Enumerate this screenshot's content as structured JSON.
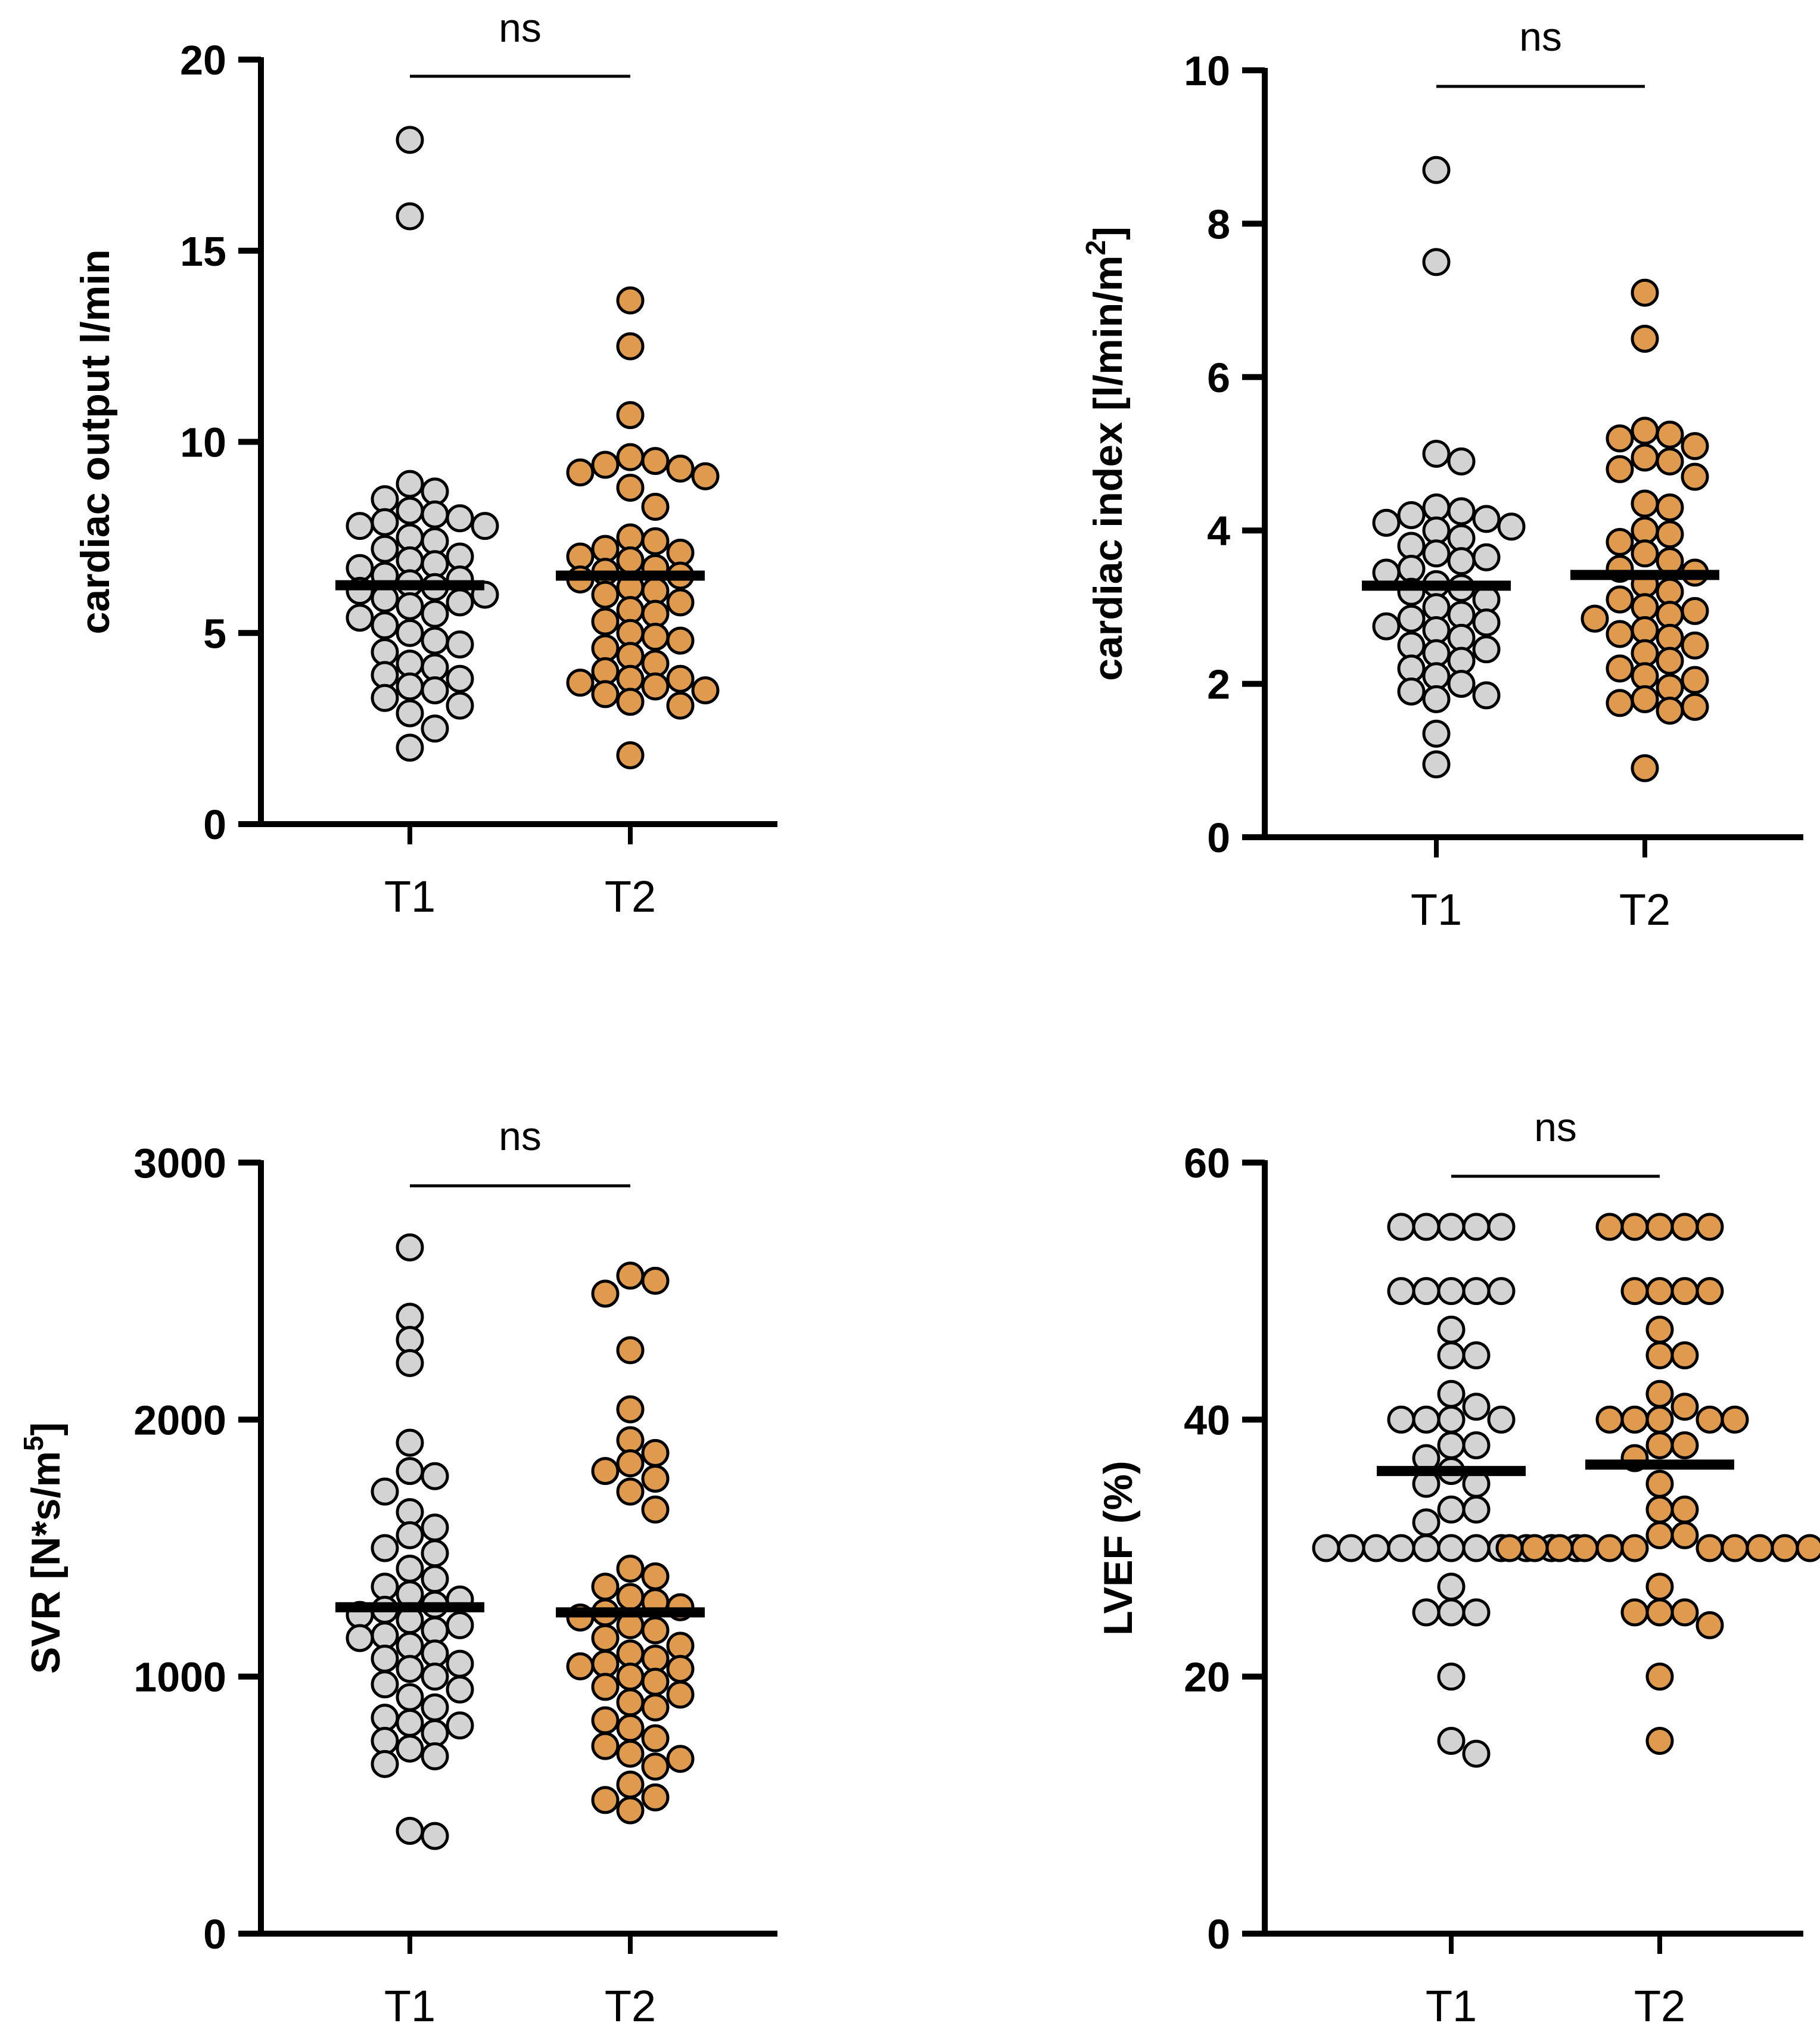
{
  "colors": {
    "T1_fill": "#d3d3d3",
    "T2_fill": "#e09a4e",
    "marker_edge": "#000000",
    "axis": "#000000",
    "mean_bar": "#000000"
  },
  "chart_data": [
    {
      "type": "scatter",
      "id": "cardiac-output",
      "ylabel": "cardiac output l/min",
      "ylabel_sup": "",
      "ylim": [
        0,
        20
      ],
      "yticks": [
        "0",
        "5",
        "10",
        "15",
        "20"
      ],
      "categories": [
        "T1",
        "T2"
      ],
      "significance": "ns",
      "series": [
        {
          "name": "T1",
          "mean": 6.25,
          "values": [
            17.9,
            15.9,
            8.9,
            8.7,
            8.5,
            8.2,
            8.1,
            8.0,
            7.9,
            7.8,
            7.8,
            7.5,
            7.4,
            7.2,
            7.0,
            6.9,
            6.8,
            6.7,
            6.5,
            6.4,
            6.3,
            6.2,
            6.1,
            6.0,
            5.9,
            5.8,
            5.7,
            5.5,
            5.4,
            5.2,
            5.0,
            4.8,
            4.7,
            4.5,
            4.2,
            4.1,
            3.9,
            3.8,
            3.6,
            3.5,
            3.3,
            3.1,
            2.9,
            2.5,
            2.0
          ]
        },
        {
          "name": "T2",
          "mean": 6.5,
          "values": [
            13.7,
            12.5,
            10.7,
            9.6,
            9.5,
            9.4,
            9.3,
            9.2,
            9.1,
            8.8,
            8.3,
            7.5,
            7.4,
            7.2,
            7.1,
            7.0,
            6.9,
            6.7,
            6.6,
            6.5,
            6.4,
            6.2,
            6.1,
            6.0,
            5.8,
            5.6,
            5.5,
            5.3,
            5.0,
            4.9,
            4.8,
            4.6,
            4.4,
            4.2,
            4.0,
            3.8,
            3.8,
            3.7,
            3.6,
            3.5,
            3.4,
            3.2,
            3.1,
            1.8
          ]
        }
      ]
    },
    {
      "type": "scatter",
      "id": "cardiac-index",
      "ylabel": "cardiac index [l/min/m",
      "ylabel_sup": "2",
      "ylabel_end": "]",
      "ylim": [
        0,
        10
      ],
      "yticks": [
        "0",
        "2",
        "4",
        "6",
        "8",
        "10"
      ],
      "categories": [
        "T1",
        "T2"
      ],
      "significance": "ns",
      "series": [
        {
          "name": "T1",
          "mean": 3.28,
          "values": [
            8.7,
            7.5,
            5.0,
            4.9,
            4.3,
            4.25,
            4.2,
            4.15,
            4.1,
            4.05,
            4.0,
            3.9,
            3.8,
            3.7,
            3.65,
            3.6,
            3.5,
            3.45,
            3.3,
            3.25,
            3.2,
            3.1,
            3.0,
            2.9,
            2.85,
            2.8,
            2.75,
            2.7,
            2.6,
            2.5,
            2.45,
            2.4,
            2.3,
            2.2,
            2.1,
            2.0,
            1.9,
            1.85,
            1.8,
            1.35,
            0.95
          ]
        },
        {
          "name": "T2",
          "mean": 3.42,
          "values": [
            7.1,
            6.5,
            5.3,
            5.25,
            5.2,
            5.1,
            4.95,
            4.9,
            4.8,
            4.7,
            4.35,
            4.3,
            4.0,
            3.95,
            3.85,
            3.7,
            3.6,
            3.5,
            3.45,
            3.3,
            3.2,
            3.1,
            3.0,
            2.95,
            2.9,
            2.85,
            2.7,
            2.65,
            2.6,
            2.5,
            2.4,
            2.3,
            2.2,
            2.1,
            2.05,
            1.95,
            1.8,
            1.75,
            1.7,
            1.65,
            0.9
          ]
        }
      ]
    },
    {
      "type": "scatter",
      "id": "svr",
      "ylabel": "SVR [N*s/m",
      "ylabel_sup": "5",
      "ylabel_end": "]",
      "ylim": [
        0,
        3000
      ],
      "yticks": [
        "0",
        "1000",
        "2000",
        "3000"
      ],
      "categories": [
        "T1",
        "T2"
      ],
      "significance": "ns",
      "series": [
        {
          "name": "T1",
          "mean": 1270,
          "values": [
            2670,
            2400,
            2310,
            2220,
            1910,
            1800,
            1780,
            1720,
            1640,
            1580,
            1550,
            1500,
            1480,
            1420,
            1380,
            1350,
            1320,
            1300,
            1280,
            1260,
            1240,
            1220,
            1200,
            1180,
            1160,
            1150,
            1120,
            1090,
            1070,
            1050,
            1030,
            1000,
            970,
            950,
            920,
            880,
            840,
            820,
            810,
            780,
            750,
            720,
            690,
            660,
            400,
            380
          ]
        },
        {
          "name": "T2",
          "mean": 1250,
          "values": [
            2560,
            2540,
            2490,
            2270,
            2040,
            1920,
            1870,
            1830,
            1800,
            1770,
            1720,
            1650,
            1420,
            1390,
            1350,
            1310,
            1290,
            1270,
            1250,
            1230,
            1200,
            1180,
            1150,
            1120,
            1090,
            1070,
            1050,
            1040,
            1030,
            1000,
            980,
            960,
            930,
            900,
            880,
            830,
            800,
            760,
            730,
            700,
            680,
            650,
            580,
            530,
            520,
            480
          ]
        }
      ]
    },
    {
      "type": "scatter",
      "id": "lvef",
      "ylabel": "LVEF (%)",
      "ylabel_sup": "",
      "ylim": [
        0,
        60
      ],
      "yticks": [
        "0",
        "20",
        "40",
        "60"
      ],
      "categories": [
        "T1",
        "T2"
      ],
      "significance": "ns",
      "series": [
        {
          "name": "T1",
          "mean": 36.0,
          "values": [
            55,
            55,
            55,
            55,
            55,
            50,
            50,
            50,
            50,
            50,
            47,
            45,
            45,
            42,
            41,
            40,
            40,
            40,
            40,
            38,
            38,
            37,
            36,
            35,
            35,
            33,
            33,
            32,
            30,
            30,
            30,
            30,
            30,
            30,
            30,
            30,
            30,
            30,
            30,
            27,
            25,
            25,
            25,
            20,
            15,
            14
          ]
        },
        {
          "name": "T2",
          "mean": 36.5,
          "values": [
            55,
            55,
            55,
            55,
            55,
            50,
            50,
            50,
            50,
            47,
            45,
            45,
            42,
            41,
            40,
            40,
            40,
            40,
            40,
            38,
            38,
            37,
            35,
            33,
            33,
            31,
            31,
            30,
            30,
            30,
            30,
            30,
            30,
            30,
            30,
            30,
            30,
            30,
            30,
            27,
            25,
            25,
            25,
            24,
            20,
            15
          ]
        }
      ]
    }
  ]
}
